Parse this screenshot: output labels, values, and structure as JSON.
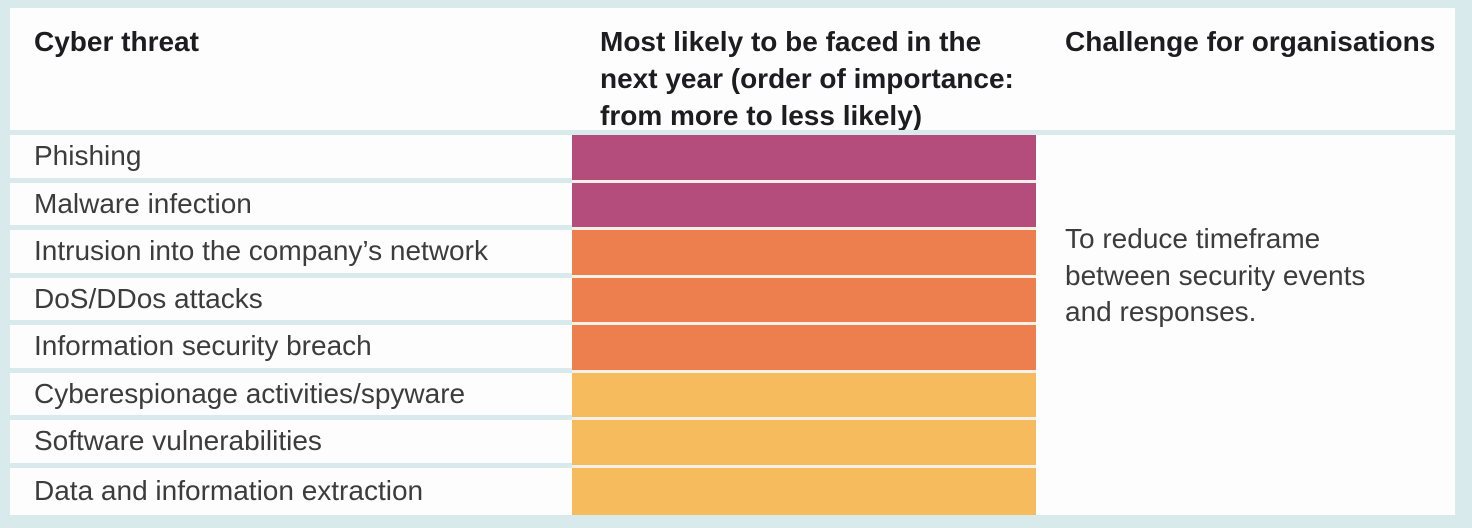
{
  "page": {
    "background_color": "#d9eaec",
    "cell_background": "#fdfdfe",
    "row_separator_color": "#d9eaec",
    "bar_separator_color": "#f6f0e6"
  },
  "table": {
    "headers": {
      "threat": "Cyber threat",
      "likelihood": "Most likely to be faced in the next year (order of importance: from more to less likely)",
      "challenge": "Challenge for organisations"
    },
    "rows": [
      {
        "label": "Phishing",
        "likelihood_band": "high",
        "bar_color": "#b44d7b"
      },
      {
        "label": "Malware infection",
        "likelihood_band": "high",
        "bar_color": "#b44d7b"
      },
      {
        "label": "Intrusion into the company’s network",
        "likelihood_band": "medium",
        "bar_color": "#ed7f4f"
      },
      {
        "label": "DoS/DDos attacks",
        "likelihood_band": "medium",
        "bar_color": "#ed7f4f"
      },
      {
        "label": "Information security breach",
        "likelihood_band": "medium",
        "bar_color": "#ed7f4f"
      },
      {
        "label": "Cyberespionage activities/spyware",
        "likelihood_band": "lower",
        "bar_color": "#f5bb5d"
      },
      {
        "label": "Software vulnerabilities",
        "likelihood_band": "lower",
        "bar_color": "#f5bb5d"
      },
      {
        "label": "Data and information extraction",
        "likelihood_band": "lower",
        "bar_color": "#f5bb5d"
      }
    ],
    "challenge_note": "To reduce timeframe between security events and responses."
  },
  "chart_data": {
    "type": "table",
    "title": "",
    "columns": [
      "Cyber threat",
      "Most likely to be faced in the next year (order of importance: from more to less likely)",
      "Challenge for organisations"
    ],
    "rows": [
      {
        "threat": "Phishing",
        "order_of_likelihood": 1,
        "likelihood_band": "high",
        "bar_color": "#b44d7b"
      },
      {
        "threat": "Malware infection",
        "order_of_likelihood": 2,
        "likelihood_band": "high",
        "bar_color": "#b44d7b"
      },
      {
        "threat": "Intrusion into the company’s network",
        "order_of_likelihood": 3,
        "likelihood_band": "medium",
        "bar_color": "#ed7f4f"
      },
      {
        "threat": "DoS/DDos attacks",
        "order_of_likelihood": 4,
        "likelihood_band": "medium",
        "bar_color": "#ed7f4f"
      },
      {
        "threat": "Information security breach",
        "order_of_likelihood": 5,
        "likelihood_band": "medium",
        "bar_color": "#ed7f4f"
      },
      {
        "threat": "Cyberespionage activities/spyware",
        "order_of_likelihood": 6,
        "likelihood_band": "lower",
        "bar_color": "#f5bb5d"
      },
      {
        "threat": "Software vulnerabilities",
        "order_of_likelihood": 7,
        "likelihood_band": "lower",
        "bar_color": "#f5bb5d"
      },
      {
        "threat": "Data and information extraction",
        "order_of_likelihood": 8,
        "likelihood_band": "lower",
        "bar_color": "#f5bb5d"
      }
    ],
    "color_encoding": {
      "high": "#b44d7b",
      "medium": "#ed7f4f",
      "lower": "#f5bb5d"
    },
    "challenge_for_organisations": "To reduce timeframe between security events and responses.",
    "layout": {
      "legend": "none",
      "bars_encode": "likelihood rank by color, full-width equal-length bars"
    }
  }
}
